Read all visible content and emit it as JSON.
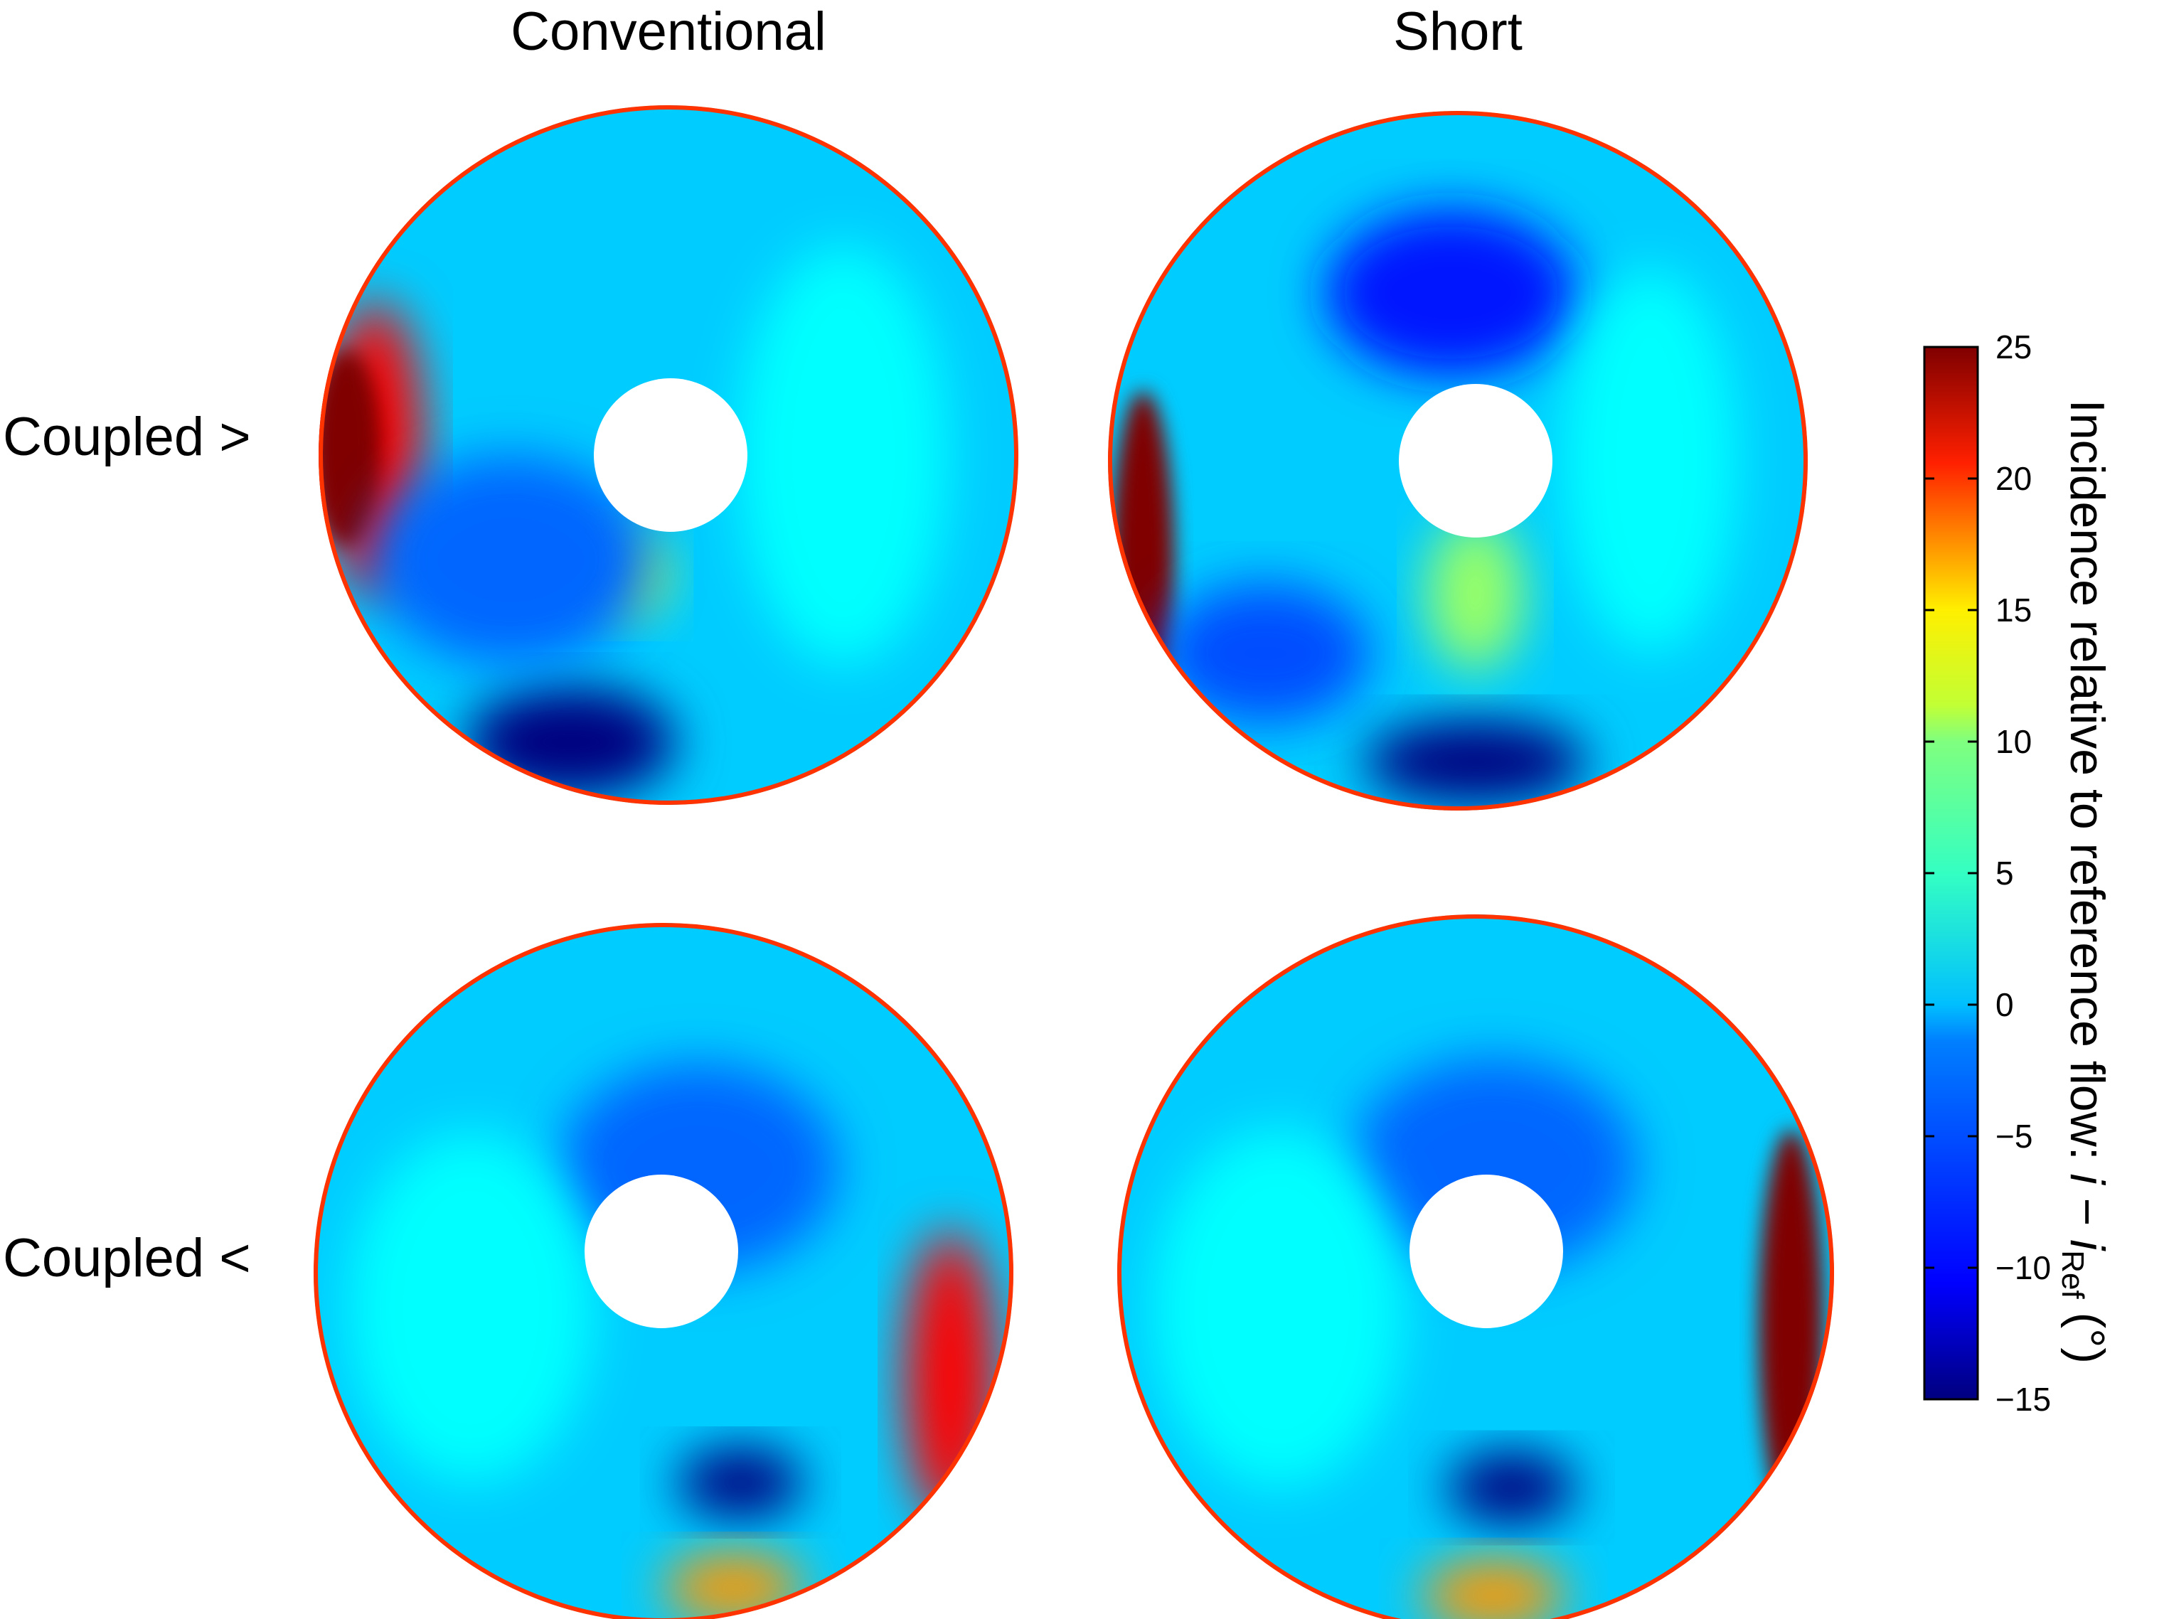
{
  "chart_data": {
    "type": "heatmap",
    "column_titles": [
      "Conventional",
      "Short"
    ],
    "row_labels": [
      "Coupled >",
      "Coupled <"
    ],
    "panels": [
      {
        "column": "Conventional",
        "row": "Coupled >",
        "features": [
          {
            "region": "outer rim, left side (about 8–11 o'clock)",
            "value": 20
          },
          {
            "region": "lower-left, near outer rim (about 7 o'clock)",
            "value": -15
          },
          {
            "region": "below hub",
            "value": 7
          },
          {
            "region": "left of hub",
            "value": -6
          },
          {
            "region": "right half",
            "value": 0
          }
        ]
      },
      {
        "column": "Short",
        "row": "Coupled >",
        "features": [
          {
            "region": "outer rim, left side (about 7–10 o'clock)",
            "value": 25
          },
          {
            "region": "bottom, near outer rim (about 6 o'clock)",
            "value": -15
          },
          {
            "region": "above hub",
            "value": -9
          },
          {
            "region": "below hub",
            "value": 6
          },
          {
            "region": "right half",
            "value": 0
          }
        ]
      },
      {
        "column": "Conventional",
        "row": "Coupled <",
        "features": [
          {
            "region": "outer rim, right side (about 2–5 o'clock)",
            "value": 20
          },
          {
            "region": "lower-right, inside (about 5 o'clock)",
            "value": -15
          },
          {
            "region": "bottom, near outer rim",
            "value": 14
          },
          {
            "region": "left and upper half",
            "value": 0
          }
        ]
      },
      {
        "column": "Short",
        "row": "Coupled <",
        "features": [
          {
            "region": "outer rim, right side (about 1–5 o'clock)",
            "value": 25
          },
          {
            "region": "lower-right, inside (about 5 o'clock)",
            "value": -15
          },
          {
            "region": "bottom, near outer rim",
            "value": 14
          },
          {
            "region": "left half",
            "value": 0
          }
        ]
      }
    ],
    "colorbar": {
      "label_main": "Incidence relative to reference flow: ",
      "label_i": "i",
      "label_minus": " − ",
      "label_i2": "i",
      "label_sub": "Ref",
      "label_unit": " (°)",
      "range": [
        -15,
        25
      ],
      "ticks": [
        "25",
        "20",
        "15",
        "10",
        "5",
        "0",
        "−5",
        "−10",
        "−15"
      ],
      "tick_values": [
        25,
        20,
        15,
        10,
        5,
        0,
        -5,
        -10,
        -15
      ],
      "colormap": "jet"
    }
  }
}
